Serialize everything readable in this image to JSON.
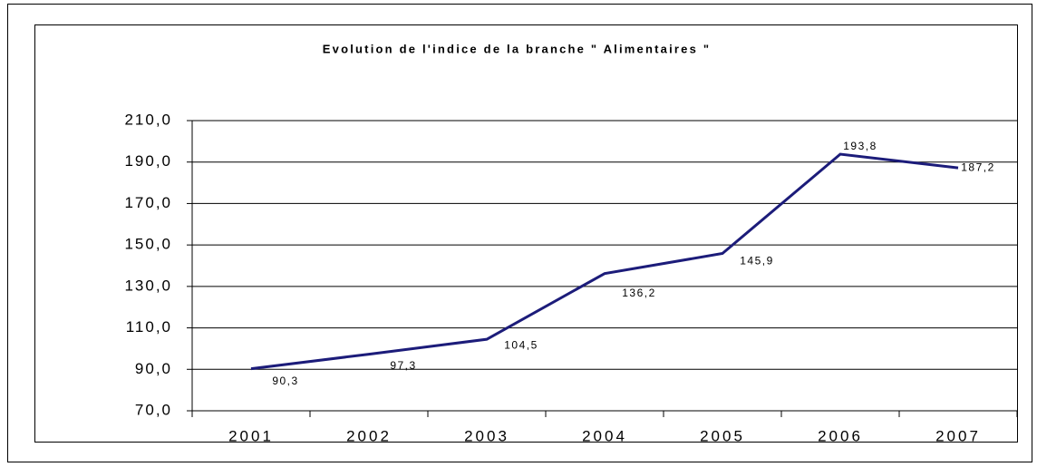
{
  "chart_data": {
    "type": "line",
    "title": "Evolution de l'indice de la branche \" Alimentaires \"",
    "categories": [
      "2001",
      "2002",
      "2003",
      "2004",
      "2005",
      "2006",
      "2007"
    ],
    "series": [
      {
        "color": "#1c1c7a",
        "values": [
          90.3,
          97.3,
          104.5,
          136.2,
          145.9,
          193.8,
          187.2
        ],
        "value_labels": [
          "90,3",
          "97,3",
          "104,5",
          "136,2",
          "145,9",
          "193,8",
          "187,2"
        ]
      }
    ],
    "ylim": [
      70,
      210
    ],
    "yticks": [
      {
        "value": 70,
        "label": "70,0"
      },
      {
        "value": 90,
        "label": "90,0"
      },
      {
        "value": 110,
        "label": "110,0"
      },
      {
        "value": 130,
        "label": "130,0"
      },
      {
        "value": 150,
        "label": "150,0"
      },
      {
        "value": 170,
        "label": "170,0"
      },
      {
        "value": 190,
        "label": "190,0"
      },
      {
        "value": 210,
        "label": "210,0"
      }
    ],
    "grid": true
  }
}
